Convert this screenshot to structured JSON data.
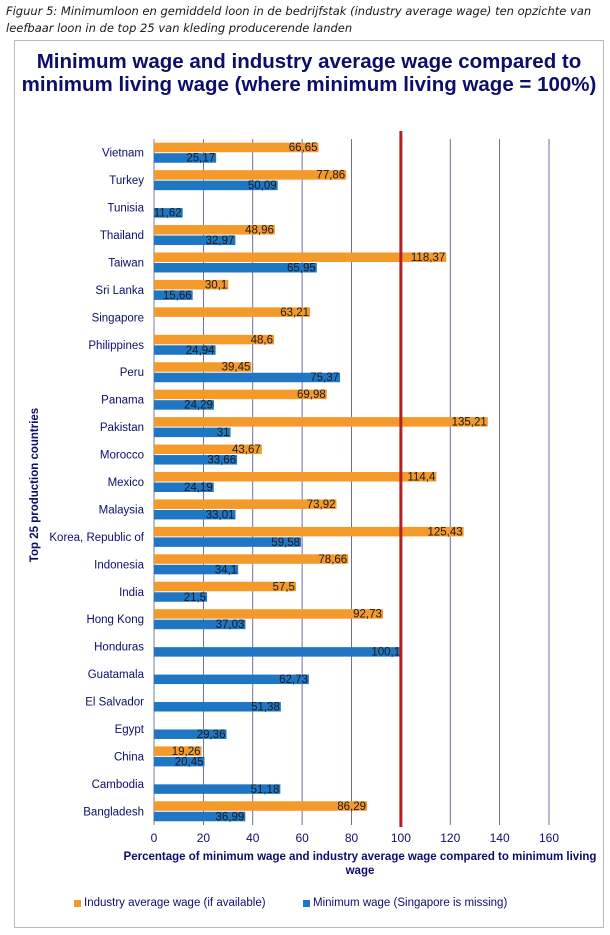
{
  "caption": "Figuur 5: Minimumloon en gemiddeld loon in de bedrijfstak (industry average wage) ten opzichte van leefbaar loon in de top 25 van kleding producerende landen",
  "colors": {
    "industry": "#f39a2b",
    "minimum": "#1f77c4",
    "reference_line": "#b22222",
    "text": "#0d0d6b",
    "grid": "#4a4a8a"
  },
  "chart_data": {
    "type": "bar",
    "orientation": "horizontal",
    "title": "Minimum wage and industry average wage compared to minimum living wage (where minimum living wage = 100%)",
    "xlabel": "Percentage of minimum wage and industry  average wage compared to minimum living wage",
    "ylabel": "Top 25 production countries",
    "xlim": [
      0,
      160
    ],
    "xticks": [
      0,
      20,
      40,
      60,
      80,
      100,
      120,
      140,
      160
    ],
    "reference_line": 100,
    "grid": "vertical",
    "legend_position": "bottom",
    "categories": [
      "Vietnam",
      "Turkey",
      "Tunisia",
      "Thailand",
      "Taiwan",
      "Sri Lanka",
      "Singapore",
      "Philippines",
      "Peru",
      "Panama",
      "Pakistan",
      "Morocco",
      "Mexico",
      "Malaysia",
      "Korea, Republic of",
      "Indonesia",
      "India",
      "Hong Kong",
      "Honduras",
      "Guatamala",
      "El Salvador",
      "Egypt",
      "China",
      "Cambodia",
      "Bangladesh"
    ],
    "series": [
      {
        "name": "Industry average wage (if available)",
        "color": "#f39a2b",
        "values": [
          66.65,
          77.86,
          null,
          48.96,
          118.37,
          30.1,
          63.21,
          48.6,
          39.45,
          69.98,
          135.21,
          43.67,
          114.4,
          73.92,
          125.43,
          78.66,
          57.5,
          92.73,
          null,
          null,
          null,
          null,
          19.26,
          null,
          86.29
        ],
        "labels": [
          "66,65",
          "77,86",
          "",
          "48,96",
          "118,37",
          "30,1",
          "63,21",
          "48,6",
          "39,45",
          "69,98",
          "135,21",
          "43,67",
          "114,4",
          "73,92",
          "125,43",
          "78,66",
          "57,5",
          "92,73",
          "",
          "",
          "",
          "",
          "19,26",
          "",
          "86,29"
        ]
      },
      {
        "name": "Minimum wage (Singapore is missing)",
        "color": "#1f77c4",
        "values": [
          25.17,
          50.09,
          11.62,
          32.97,
          65.95,
          15.66,
          null,
          24.94,
          75.37,
          24.29,
          31,
          33.66,
          24.19,
          33.01,
          59.58,
          34.1,
          21.5,
          37.03,
          100.1,
          62.73,
          51.38,
          29.36,
          20.45,
          51.18,
          36.99
        ],
        "labels": [
          "25,17",
          "50,09",
          "11,62",
          "32,97",
          "65,95",
          "15,66",
          "",
          "24,94",
          "75,37",
          "24,29",
          "31",
          "33,66",
          "24,19",
          "33,01",
          "59,58",
          "34,1",
          "21,5",
          "37,03",
          "100,1",
          "62,73",
          "51,38",
          "29,36",
          "20,45",
          "51,18",
          "36,99"
        ]
      }
    ]
  }
}
